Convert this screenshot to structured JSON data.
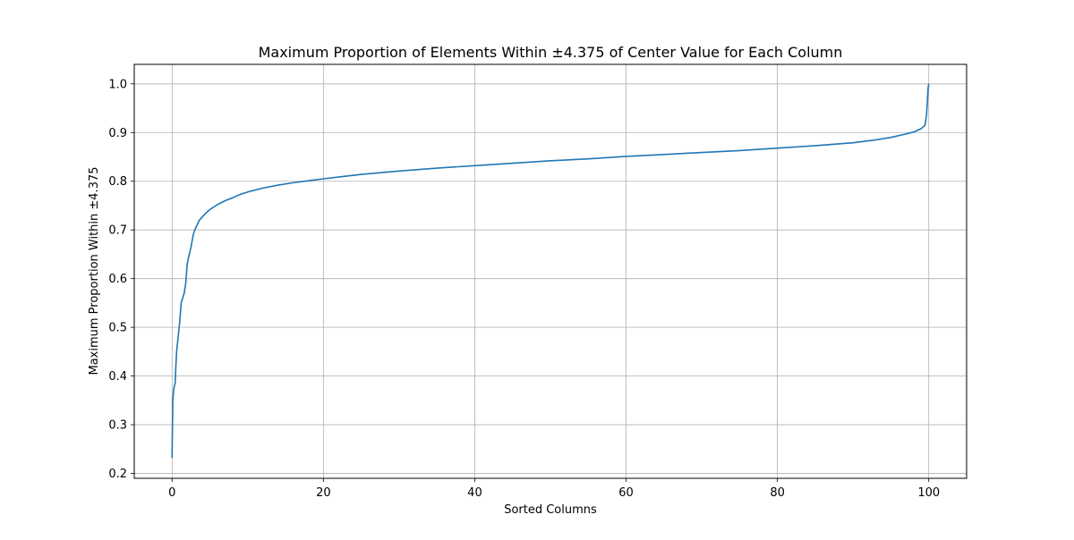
{
  "chart_data": {
    "type": "line",
    "title": "Maximum Proportion of Elements Within ±4.375 of Center Value for Each Column",
    "xlabel": "Sorted Columns",
    "ylabel": "Maximum Proportion Within ±4.375",
    "xlim": [
      -5,
      105
    ],
    "ylim": [
      0.19,
      1.04
    ],
    "xticks": [
      0,
      20,
      40,
      60,
      80,
      100
    ],
    "yticks": [
      0.2,
      0.3,
      0.4,
      0.5,
      0.6,
      0.7,
      0.8,
      0.9,
      1.0
    ],
    "xtick_labels": [
      "0",
      "20",
      "40",
      "60",
      "80",
      "100"
    ],
    "ytick_labels": [
      "0.2",
      "0.3",
      "0.4",
      "0.5",
      "0.6",
      "0.7",
      "0.8",
      "0.9",
      "1.0"
    ],
    "grid": true,
    "series": [
      {
        "color": "#1f77b4",
        "x": [
          0,
          0.05,
          0.1,
          0.2,
          0.3,
          0.4,
          0.5,
          0.6,
          0.8,
          1.0,
          1.2,
          1.4,
          1.6,
          1.8,
          2.0,
          2.2,
          2.5,
          2.8,
          3.0,
          3.3,
          3.6,
          4.0,
          4.5,
          5.0,
          6.0,
          7.0,
          8.0,
          9.0,
          10.0,
          12.0,
          14.0,
          16.0,
          18.0,
          20.0,
          25.0,
          30.0,
          35.0,
          40.0,
          45.0,
          50.0,
          55.0,
          60.0,
          65.0,
          70.0,
          75.0,
          80.0,
          85.0,
          90.0,
          93.0,
          95.0,
          97.0,
          98.0,
          99.0,
          99.5,
          99.6,
          99.7,
          99.8,
          99.9,
          100.0
        ],
        "values": [
          0.232,
          0.3,
          0.35,
          0.37,
          0.38,
          0.385,
          0.42,
          0.45,
          0.48,
          0.51,
          0.55,
          0.56,
          0.57,
          0.59,
          0.63,
          0.645,
          0.665,
          0.69,
          0.7,
          0.71,
          0.72,
          0.727,
          0.735,
          0.742,
          0.752,
          0.76,
          0.766,
          0.773,
          0.778,
          0.786,
          0.792,
          0.797,
          0.801,
          0.805,
          0.814,
          0.821,
          0.827,
          0.832,
          0.837,
          0.842,
          0.846,
          0.851,
          0.855,
          0.859,
          0.863,
          0.868,
          0.873,
          0.879,
          0.885,
          0.89,
          0.897,
          0.901,
          0.908,
          0.915,
          0.925,
          0.935,
          0.96,
          0.99,
          1.0
        ]
      }
    ]
  }
}
